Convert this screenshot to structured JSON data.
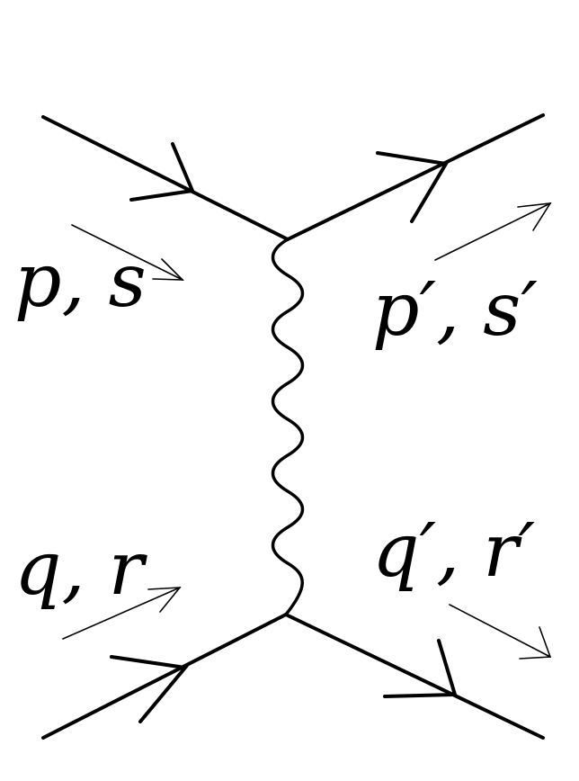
{
  "diagram": {
    "type": "feynman-t-channel-scattering",
    "labels": {
      "incoming_top": "p, s",
      "outgoing_top": "p′, s′",
      "incoming_bottom": "q, r",
      "outgoing_bottom": "q′, r′"
    },
    "propagator": "photon"
  },
  "colors": {
    "ink": "#000000",
    "background": "#ffffff"
  }
}
